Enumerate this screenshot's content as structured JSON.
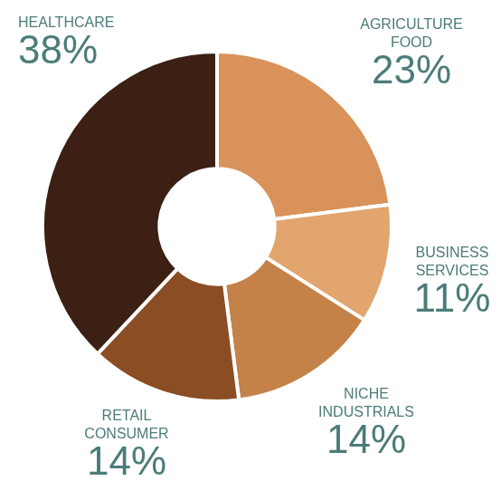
{
  "chart_data": {
    "type": "doughnut",
    "categories": [
      "AGRICULTURE FOOD",
      "BUSINESS SERVICES",
      "NICHE INDUSTRIALS",
      "RETAIL CONSUMER",
      "HEALTHCARE"
    ],
    "values": [
      23,
      11,
      14,
      14,
      38
    ],
    "value_labels": [
      "23%",
      "11%",
      "14%",
      "14%",
      "38%"
    ],
    "colors": [
      "#d8925a",
      "#e2a56e",
      "#c58248",
      "#8a4d24",
      "#3b2013"
    ],
    "data_labels": true
  }
}
